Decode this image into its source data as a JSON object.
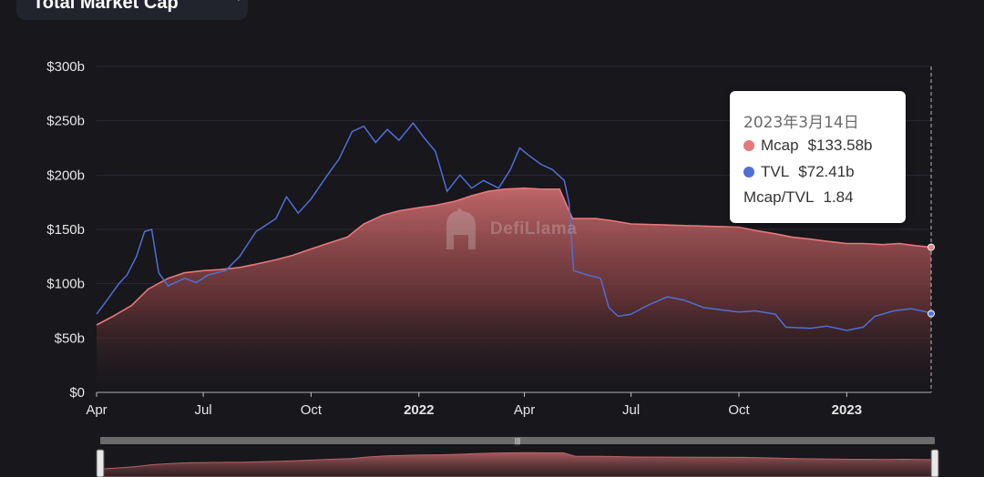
{
  "metric_selector": {
    "label": "Total Market Cap",
    "icon": "chevron-down-icon"
  },
  "watermark": {
    "text": "DefiLlama",
    "icon": "llama-logo-icon"
  },
  "tooltip": {
    "date": "2023年3月14日",
    "rows": [
      {
        "label": "Mcap",
        "value": "$133.58b",
        "color": "#e8777a"
      },
      {
        "label": "TVL",
        "value": "$72.41b",
        "color": "#4f6fd7"
      },
      {
        "label": "Mcap/TVL",
        "value": "1.84"
      }
    ]
  },
  "chart_data": {
    "type": "area",
    "x_axis": {
      "type": "date",
      "ticks": [
        {
          "date": "2021-04-01",
          "label": "Apr"
        },
        {
          "date": "2021-07-01",
          "label": "Jul"
        },
        {
          "date": "2021-10-01",
          "label": "Oct"
        },
        {
          "date": "2022-01-01",
          "label": "2022",
          "bold": true
        },
        {
          "date": "2022-04-01",
          "label": "Apr"
        },
        {
          "date": "2022-07-01",
          "label": "Jul"
        },
        {
          "date": "2022-10-01",
          "label": "Oct"
        },
        {
          "date": "2023-01-01",
          "label": "2023",
          "bold": true
        }
      ]
    },
    "xlim": [
      "2021-04-01",
      "2023-03-14"
    ],
    "ylim": [
      0,
      300
    ],
    "y_ticks": [
      {
        "value": 0,
        "label": "$0"
      },
      {
        "value": 50,
        "label": "$50b"
      },
      {
        "value": 100,
        "label": "$100b"
      },
      {
        "value": 150,
        "label": "$150b"
      },
      {
        "value": 200,
        "label": "$200b"
      },
      {
        "value": 250,
        "label": "$250b"
      },
      {
        "value": 300,
        "label": "$300b"
      }
    ],
    "grid": true,
    "hover_date": "2023-03-14",
    "series": [
      {
        "name": "Mcap",
        "kind": "area",
        "color": "#e8777a",
        "points": [
          [
            "2021-04-01",
            62
          ],
          [
            "2021-04-15",
            70
          ],
          [
            "2021-05-01",
            80
          ],
          [
            "2021-05-15",
            95
          ],
          [
            "2021-06-01",
            105
          ],
          [
            "2021-06-15",
            110
          ],
          [
            "2021-07-01",
            112
          ],
          [
            "2021-07-15",
            113
          ],
          [
            "2021-08-01",
            115
          ],
          [
            "2021-08-15",
            118
          ],
          [
            "2021-09-01",
            122
          ],
          [
            "2021-09-15",
            126
          ],
          [
            "2021-10-01",
            132
          ],
          [
            "2021-10-15",
            137
          ],
          [
            "2021-11-01",
            143
          ],
          [
            "2021-11-15",
            155
          ],
          [
            "2021-12-01",
            163
          ],
          [
            "2021-12-15",
            167
          ],
          [
            "2022-01-01",
            170
          ],
          [
            "2022-01-15",
            172
          ],
          [
            "2022-02-01",
            176
          ],
          [
            "2022-02-15",
            181
          ],
          [
            "2022-03-01",
            185
          ],
          [
            "2022-03-15",
            187
          ],
          [
            "2022-04-01",
            188
          ],
          [
            "2022-04-15",
            187
          ],
          [
            "2022-05-01",
            187
          ],
          [
            "2022-05-12",
            160
          ],
          [
            "2022-06-01",
            160
          ],
          [
            "2022-06-15",
            158
          ],
          [
            "2022-07-01",
            155
          ],
          [
            "2022-08-01",
            154
          ],
          [
            "2022-09-01",
            153
          ],
          [
            "2022-10-01",
            152
          ],
          [
            "2022-10-15",
            149
          ],
          [
            "2022-11-01",
            146
          ],
          [
            "2022-11-15",
            143
          ],
          [
            "2022-12-01",
            141
          ],
          [
            "2022-12-15",
            139
          ],
          [
            "2023-01-01",
            137
          ],
          [
            "2023-01-15",
            137
          ],
          [
            "2023-02-01",
            136
          ],
          [
            "2023-02-15",
            137
          ],
          [
            "2023-03-01",
            135
          ],
          [
            "2023-03-14",
            133.58
          ]
        ]
      },
      {
        "name": "TVL",
        "kind": "line",
        "color": "#4f6fd7",
        "points": [
          [
            "2021-04-01",
            72
          ],
          [
            "2021-04-10",
            85
          ],
          [
            "2021-04-20",
            100
          ],
          [
            "2021-04-27",
            108
          ],
          [
            "2021-05-05",
            125
          ],
          [
            "2021-05-12",
            148
          ],
          [
            "2021-05-18",
            150
          ],
          [
            "2021-05-24",
            110
          ],
          [
            "2021-06-01",
            98
          ],
          [
            "2021-06-15",
            105
          ],
          [
            "2021-06-25",
            101
          ],
          [
            "2021-07-05",
            108
          ],
          [
            "2021-07-20",
            112
          ],
          [
            "2021-08-01",
            125
          ],
          [
            "2021-08-15",
            148
          ],
          [
            "2021-09-01",
            160
          ],
          [
            "2021-09-10",
            180
          ],
          [
            "2021-09-20",
            165
          ],
          [
            "2021-10-01",
            178
          ],
          [
            "2021-10-15",
            200
          ],
          [
            "2021-10-25",
            215
          ],
          [
            "2021-11-05",
            240
          ],
          [
            "2021-11-15",
            245
          ],
          [
            "2021-11-25",
            230
          ],
          [
            "2021-12-05",
            242
          ],
          [
            "2021-12-15",
            232
          ],
          [
            "2021-12-27",
            248
          ],
          [
            "2022-01-05",
            235
          ],
          [
            "2022-01-15",
            222
          ],
          [
            "2022-01-25",
            185
          ],
          [
            "2022-02-05",
            200
          ],
          [
            "2022-02-15",
            188
          ],
          [
            "2022-02-25",
            195
          ],
          [
            "2022-03-10",
            188
          ],
          [
            "2022-03-20",
            205
          ],
          [
            "2022-03-28",
            225
          ],
          [
            "2022-04-05",
            218
          ],
          [
            "2022-04-15",
            210
          ],
          [
            "2022-04-25",
            205
          ],
          [
            "2022-05-05",
            195
          ],
          [
            "2022-05-09",
            175
          ],
          [
            "2022-05-13",
            112
          ],
          [
            "2022-05-25",
            108
          ],
          [
            "2022-06-05",
            105
          ],
          [
            "2022-06-12",
            78
          ],
          [
            "2022-06-20",
            70
          ],
          [
            "2022-07-01",
            72
          ],
          [
            "2022-07-15",
            80
          ],
          [
            "2022-08-01",
            88
          ],
          [
            "2022-08-15",
            85
          ],
          [
            "2022-09-01",
            78
          ],
          [
            "2022-09-15",
            76
          ],
          [
            "2022-10-01",
            74
          ],
          [
            "2022-10-15",
            75
          ],
          [
            "2022-11-01",
            72
          ],
          [
            "2022-11-10",
            60
          ],
          [
            "2022-12-01",
            59
          ],
          [
            "2022-12-15",
            61
          ],
          [
            "2023-01-01",
            57
          ],
          [
            "2023-01-15",
            60
          ],
          [
            "2023-01-25",
            70
          ],
          [
            "2023-02-10",
            75
          ],
          [
            "2023-02-25",
            77
          ],
          [
            "2023-03-10",
            74
          ],
          [
            "2023-03-14",
            72.41
          ]
        ]
      }
    ]
  }
}
